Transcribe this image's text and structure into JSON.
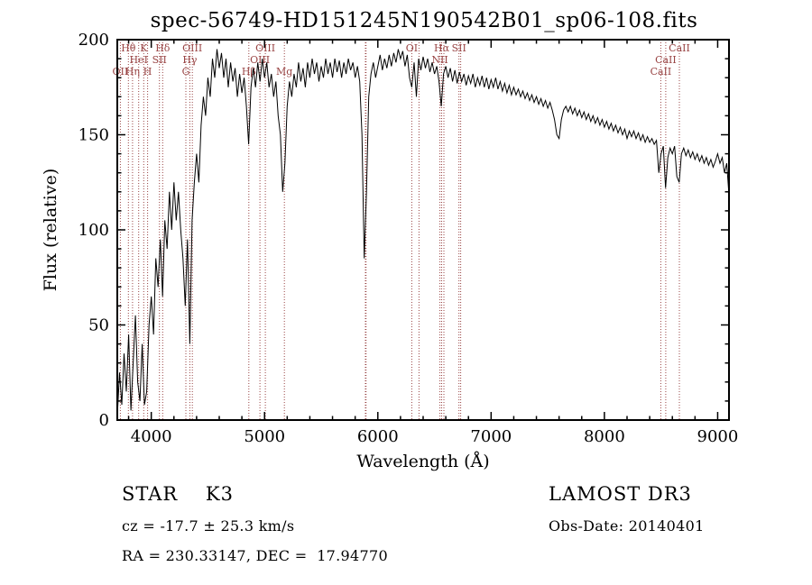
{
  "title": "spec-56749-HD151245N190542B01_sp06-108.fits",
  "chart_data": {
    "type": "line",
    "title": "spec-56749-HD151245N190542B01_sp06-108.fits",
    "xlabel": "Wavelength (Å)",
    "ylabel": "Flux (relative)",
    "xlim": [
      3700,
      9100
    ],
    "ylim": [
      0,
      200
    ],
    "xticks": [
      4000,
      5000,
      6000,
      7000,
      8000,
      9000
    ],
    "yticks": [
      0,
      50,
      100,
      150,
      200
    ],
    "x_minor_step": 200,
    "y_minor_step": 10,
    "line_color": "#000000",
    "spectral_line_color": "#994444",
    "x_start": 3700,
    "x_step": 20,
    "flux": [
      2,
      25,
      8,
      35,
      15,
      45,
      5,
      30,
      55,
      20,
      10,
      40,
      8,
      15,
      50,
      65,
      45,
      85,
      70,
      95,
      65,
      105,
      90,
      120,
      100,
      125,
      105,
      120,
      100,
      85,
      60,
      95,
      40,
      105,
      125,
      140,
      125,
      155,
      170,
      160,
      180,
      170,
      190,
      180,
      195,
      185,
      193,
      180,
      190,
      175,
      188,
      178,
      185,
      170,
      182,
      172,
      180,
      165,
      145,
      175,
      185,
      175,
      188,
      178,
      190,
      180,
      188,
      175,
      182,
      170,
      178,
      160,
      150,
      120,
      135,
      165,
      178,
      170,
      182,
      175,
      188,
      178,
      185,
      175,
      188,
      180,
      190,
      182,
      188,
      178,
      186,
      180,
      190,
      182,
      188,
      180,
      190,
      183,
      189,
      180,
      188,
      182,
      190,
      184,
      188,
      180,
      186,
      178,
      150,
      85,
      120,
      170,
      182,
      188,
      180,
      186,
      192,
      184,
      190,
      185,
      192,
      186,
      193,
      188,
      195,
      190,
      194,
      186,
      192,
      180,
      175,
      188,
      170,
      190,
      184,
      191,
      185,
      190,
      183,
      188,
      182,
      186,
      178,
      165,
      182,
      186,
      180,
      185,
      178,
      184,
      177,
      183,
      178,
      182,
      176,
      181,
      177,
      182,
      175,
      180,
      176,
      181,
      175,
      180,
      174,
      179,
      175,
      180,
      174,
      178,
      173,
      177,
      172,
      176,
      171,
      175,
      171,
      174,
      170,
      173,
      169,
      172,
      168,
      171,
      167,
      170,
      166,
      169,
      165,
      168,
      164,
      167,
      163,
      158,
      150,
      148,
      158,
      163,
      165,
      162,
      165,
      161,
      164,
      160,
      163,
      159,
      162,
      158,
      161,
      157,
      160,
      156,
      159,
      155,
      158,
      154,
      157,
      153,
      156,
      152,
      155,
      151,
      154,
      150,
      153,
      148,
      152,
      149,
      152,
      148,
      151,
      147,
      150,
      146,
      149,
      146,
      148,
      145,
      147,
      130,
      140,
      144,
      122,
      138,
      143,
      140,
      144,
      128,
      125,
      140,
      143,
      139,
      142,
      138,
      141,
      137,
      140,
      136,
      139,
      135,
      138,
      134,
      137,
      133,
      136,
      140,
      135,
      138,
      130,
      135,
      118
    ],
    "spectral_lines": [
      {
        "wavelength": 3727,
        "label": "OII",
        "row": 3
      },
      {
        "wavelength": 3798,
        "label": "Hθ",
        "row": 1
      },
      {
        "wavelength": 3835,
        "label": "Hη",
        "row": 3
      },
      {
        "wavelength": 3889,
        "label": "HeI",
        "row": 2
      },
      {
        "wavelength": 3933,
        "label": "K",
        "row": 1
      },
      {
        "wavelength": 3968,
        "label": "H",
        "row": 3
      },
      {
        "wavelength": 4072,
        "label": "SII",
        "row": 2
      },
      {
        "wavelength": 4101,
        "label": "Hδ",
        "row": 1
      },
      {
        "wavelength": 4305,
        "label": "G",
        "row": 3
      },
      {
        "wavelength": 4340,
        "label": "Hγ",
        "row": 2
      },
      {
        "wavelength": 4363,
        "label": "OIII",
        "row": 1
      },
      {
        "wavelength": 4861,
        "label": "Hβ",
        "row": 3
      },
      {
        "wavelength": 4959,
        "label": "OIII",
        "row": 2
      },
      {
        "wavelength": 5007,
        "label": "OIII",
        "row": 1
      },
      {
        "wavelength": 5175,
        "label": "Mg",
        "row": 3
      },
      {
        "wavelength": 5890,
        "label": "",
        "row": 1
      },
      {
        "wavelength": 5896,
        "label": "",
        "row": 1
      },
      {
        "wavelength": 6300,
        "label": "OI",
        "row": 1
      },
      {
        "wavelength": 6363,
        "label": "",
        "row": 1
      },
      {
        "wavelength": 6548,
        "label": "NII",
        "row": 2
      },
      {
        "wavelength": 6563,
        "label": "Hα",
        "row": 1
      },
      {
        "wavelength": 6583,
        "label": "",
        "row": 2
      },
      {
        "wavelength": 6716,
        "label": "SII",
        "row": 1
      },
      {
        "wavelength": 6731,
        "label": "",
        "row": 1
      },
      {
        "wavelength": 8498,
        "label": "CaII",
        "row": 3
      },
      {
        "wavelength": 8542,
        "label": "CaII",
        "row": 2
      },
      {
        "wavelength": 8662,
        "label": "CaII",
        "row": 1
      }
    ]
  },
  "footer": {
    "class_label": "STAR    K3",
    "survey": "LAMOST DR3",
    "cz": "cz = -17.7 ± 25.3 km/s",
    "obs_date": "Obs-Date: 20140401",
    "coords": "RA = 230.33147, DEC =  17.94770"
  }
}
